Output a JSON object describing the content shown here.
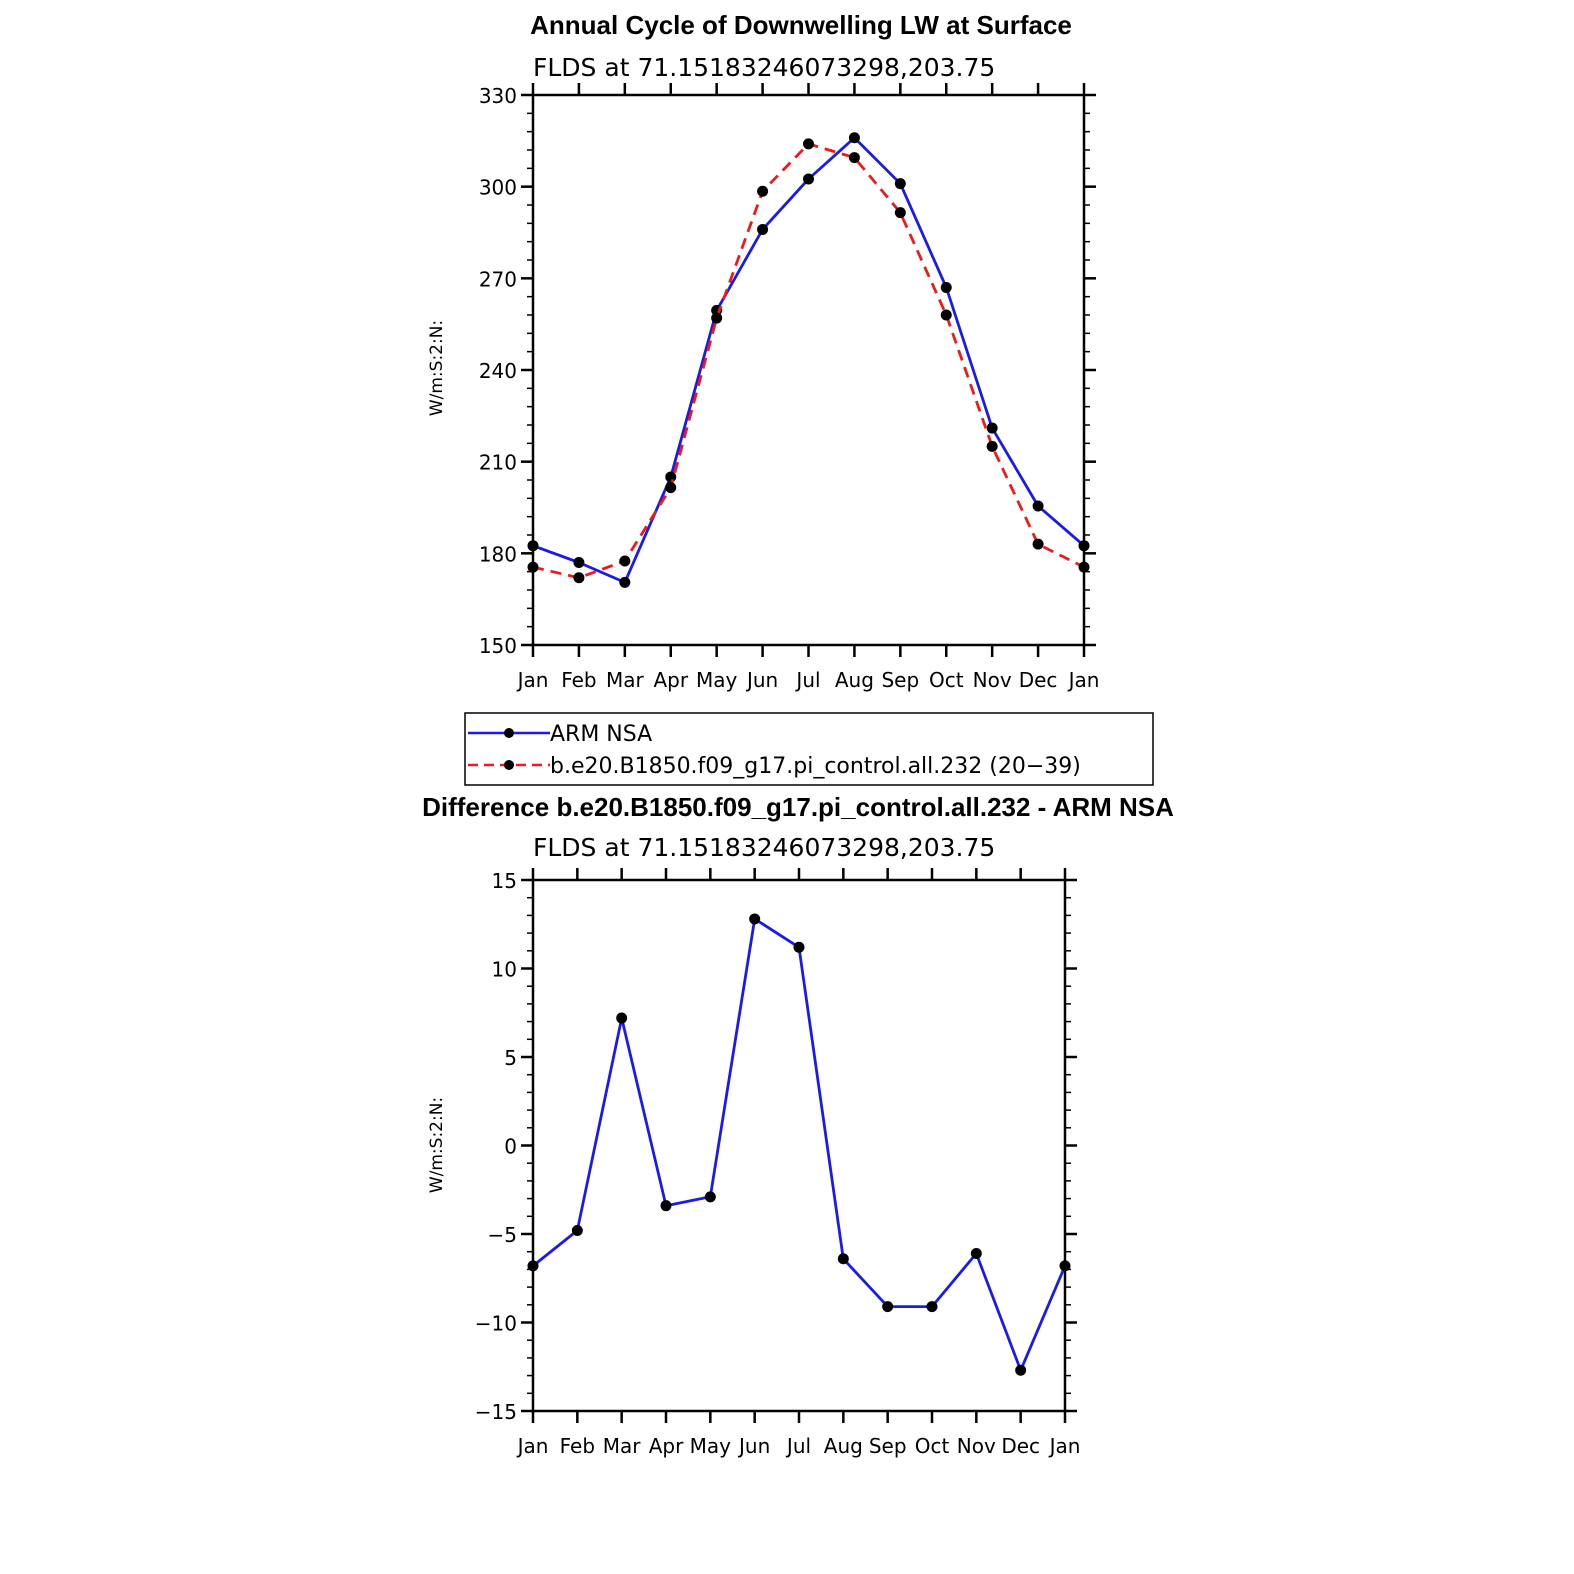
{
  "colors": {
    "obs": "#1a1aee",
    "model": "#ee1a1a",
    "marker": "#000000"
  },
  "chart_data": [
    {
      "type": "line",
      "title": "Annual Cycle of Downwelling LW at Surface",
      "subtitle": "FLDS at 71.15183246073298,203.75",
      "ylabel": "W/m:S:2:N:",
      "categories": [
        "Jan",
        "Feb",
        "Mar",
        "Apr",
        "May",
        "Jun",
        "Jul",
        "Aug",
        "Sep",
        "Oct",
        "Nov",
        "Dec",
        "Jan"
      ],
      "ylim": [
        150,
        330
      ],
      "yticks": [
        "150",
        "180",
        "210",
        "240",
        "270",
        "300",
        "330"
      ],
      "series": [
        {
          "name": "ARM NSA",
          "style": "solid",
          "values": [
            182.5,
            177.0,
            170.5,
            205.0,
            259.5,
            286.0,
            302.5,
            316.0,
            301.0,
            267.0,
            221.0,
            195.5,
            182.5
          ]
        },
        {
          "name": "b.e20.B1850.f09_g17.pi_control.all.232 (20−39)",
          "style": "dashed",
          "values": [
            175.5,
            172.0,
            177.5,
            201.5,
            257.0,
            298.5,
            314.0,
            309.5,
            291.5,
            258.0,
            215.0,
            183.0,
            175.5
          ]
        }
      ]
    },
    {
      "type": "line",
      "title": "Difference b.e20.B1850.f09_g17.pi_control.all.232 - ARM NSA",
      "subtitle": "FLDS at 71.15183246073298,203.75",
      "ylabel": "W/m:S:2:N:",
      "categories": [
        "Jan",
        "Feb",
        "Mar",
        "Apr",
        "May",
        "Jun",
        "Jul",
        "Aug",
        "Sep",
        "Oct",
        "Nov",
        "Dec",
        "Jan"
      ],
      "ylim": [
        -15,
        15
      ],
      "yticks": [
        "−15",
        "−10",
        "−5",
        "0",
        "5",
        "10",
        "15"
      ],
      "series": [
        {
          "name": "Difference",
          "style": "solid",
          "values": [
            -6.8,
            -4.8,
            7.2,
            -3.4,
            -2.9,
            12.8,
            11.2,
            -6.4,
            -9.1,
            -9.1,
            -6.1,
            -12.7,
            -6.8
          ]
        }
      ]
    }
  ]
}
